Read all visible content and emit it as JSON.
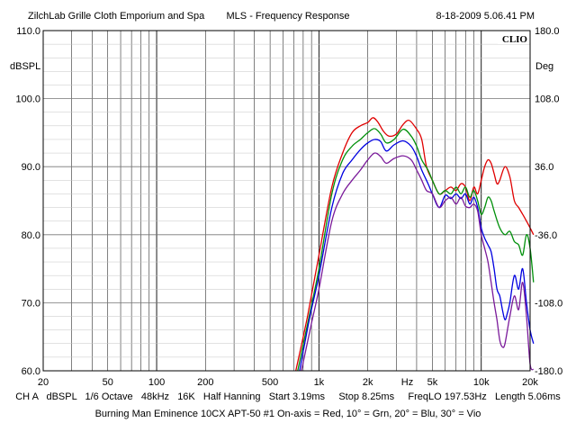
{
  "header": {
    "left": "ZilchLab Grille Cloth Emporium and Spa",
    "center": "MLS - Frequency Response",
    "right": "8-18-2009 5.06.41 PM"
  },
  "brand": "CLIO",
  "footer": {
    "line1": "CH A   dBSPL   1/6 Octave   48kHz   16K   Half Hanning   Start 3.19ms     Stop 8.25ms     FreqLO 197.53Hz   Length 5.06ms",
    "line2": "Burning Man Eminence 10CX APT-50 #1 On-axis = Red, 10° = Grn, 20° = Blu, 30° = Vio"
  },
  "chart_data": {
    "type": "line",
    "title": "MLS - Frequency Response",
    "xlabel": "Hz",
    "ylabel": "dBSPL",
    "y2label": "Deg",
    "xscale": "log",
    "xlim": [
      20,
      20000
    ],
    "ylim": [
      60,
      110
    ],
    "y2lim": [
      -180,
      180
    ],
    "grid": true,
    "x_ticks": [
      {
        "v": 20,
        "label": "20"
      },
      {
        "v": 50,
        "label": "50"
      },
      {
        "v": 100,
        "label": "100"
      },
      {
        "v": 200,
        "label": "200"
      },
      {
        "v": 500,
        "label": "500"
      },
      {
        "v": 1000,
        "label": "1k"
      },
      {
        "v": 2000,
        "label": "2k"
      },
      {
        "v": 3500,
        "label": "Hz"
      },
      {
        "v": 5000,
        "label": "5k"
      },
      {
        "v": 10000,
        "label": "10k"
      },
      {
        "v": 20000,
        "label": "20k"
      }
    ],
    "y_ticks": [
      {
        "v": 110,
        "label": "110.0"
      },
      {
        "v": 100,
        "label": "100.0"
      },
      {
        "v": 90,
        "label": "90.0"
      },
      {
        "v": 80,
        "label": "80.0"
      },
      {
        "v": 70,
        "label": "70.0"
      },
      {
        "v": 60,
        "label": "60.0"
      }
    ],
    "y2_ticks": [
      {
        "v": 180,
        "label": "180.0"
      },
      {
        "v": 108,
        "label": "108.0"
      },
      {
        "v": 36,
        "label": "36.0"
      },
      {
        "v": -36,
        "label": "-36.0"
      },
      {
        "v": -108,
        "label": "-108.0"
      },
      {
        "v": -180,
        "label": "-180.0"
      }
    ],
    "series": [
      {
        "name": "On-axis",
        "color": "#e00000",
        "points": [
          [
            720,
            60
          ],
          [
            850,
            68
          ],
          [
            1000,
            77
          ],
          [
            1200,
            87
          ],
          [
            1400,
            92
          ],
          [
            1600,
            95
          ],
          [
            1800,
            96
          ],
          [
            2000,
            96.5
          ],
          [
            2150,
            97.2
          ],
          [
            2300,
            96.6
          ],
          [
            2500,
            95.2
          ],
          [
            2700,
            94.5
          ],
          [
            3000,
            94.8
          ],
          [
            3300,
            96.2
          ],
          [
            3600,
            96.8
          ],
          [
            4000,
            95.5
          ],
          [
            4300,
            94
          ],
          [
            4600,
            90
          ],
          [
            5000,
            88
          ],
          [
            5500,
            86
          ],
          [
            6000,
            86.5
          ],
          [
            6500,
            87
          ],
          [
            7000,
            86.5
          ],
          [
            7500,
            87.5
          ],
          [
            8000,
            87
          ],
          [
            8500,
            85
          ],
          [
            9000,
            87
          ],
          [
            9500,
            86
          ],
          [
            10000,
            88
          ],
          [
            10500,
            90
          ],
          [
            11000,
            91
          ],
          [
            11500,
            90.5
          ],
          [
            12000,
            89
          ],
          [
            12500,
            87.5
          ],
          [
            13000,
            88
          ],
          [
            14000,
            90
          ],
          [
            15000,
            88.5
          ],
          [
            16000,
            85
          ],
          [
            17000,
            84
          ],
          [
            18000,
            83
          ],
          [
            19000,
            82
          ],
          [
            20000,
            81
          ],
          [
            21000,
            80
          ]
        ]
      },
      {
        "name": "10°",
        "color": "#00900a",
        "points": [
          [
            740,
            60
          ],
          [
            870,
            68
          ],
          [
            1000,
            75
          ],
          [
            1200,
            86
          ],
          [
            1400,
            91
          ],
          [
            1600,
            93
          ],
          [
            1800,
            94
          ],
          [
            2000,
            95
          ],
          [
            2200,
            95.6
          ],
          [
            2400,
            94.8
          ],
          [
            2600,
            93.5
          ],
          [
            2900,
            94
          ],
          [
            3300,
            95.5
          ],
          [
            3700,
            94.5
          ],
          [
            4000,
            93
          ],
          [
            4300,
            91
          ],
          [
            4700,
            89.5
          ],
          [
            5000,
            88
          ],
          [
            5500,
            86
          ],
          [
            6000,
            86.5
          ],
          [
            6500,
            86
          ],
          [
            7000,
            87
          ],
          [
            7500,
            86
          ],
          [
            8000,
            87
          ],
          [
            8500,
            85.5
          ],
          [
            9000,
            86.5
          ],
          [
            9500,
            85
          ],
          [
            10000,
            83
          ],
          [
            10500,
            84
          ],
          [
            11000,
            85.5
          ],
          [
            11500,
            85
          ],
          [
            12000,
            83.5
          ],
          [
            13000,
            81
          ],
          [
            14000,
            80
          ],
          [
            15000,
            80.5
          ],
          [
            16000,
            79
          ],
          [
            17000,
            78.5
          ],
          [
            18000,
            77
          ],
          [
            19000,
            80
          ],
          [
            20000,
            78
          ],
          [
            21000,
            73
          ]
        ]
      },
      {
        "name": "20°",
        "color": "#0000e0",
        "points": [
          [
            760,
            60
          ],
          [
            880,
            68
          ],
          [
            1000,
            74
          ],
          [
            1200,
            84
          ],
          [
            1400,
            89
          ],
          [
            1600,
            91
          ],
          [
            1800,
            92.5
          ],
          [
            2000,
            93.5
          ],
          [
            2200,
            94
          ],
          [
            2400,
            93.7
          ],
          [
            2600,
            92.3
          ],
          [
            2900,
            93.2
          ],
          [
            3300,
            93.8
          ],
          [
            3700,
            93
          ],
          [
            4000,
            91.5
          ],
          [
            4300,
            89.5
          ],
          [
            4700,
            87.5
          ],
          [
            5000,
            86
          ],
          [
            5500,
            84
          ],
          [
            6000,
            85.8
          ],
          [
            6500,
            85.3
          ],
          [
            7000,
            86
          ],
          [
            7500,
            85.3
          ],
          [
            8000,
            86
          ],
          [
            8500,
            84.5
          ],
          [
            9000,
            85.5
          ],
          [
            9500,
            84
          ],
          [
            10000,
            81
          ],
          [
            10500,
            79.5
          ],
          [
            11000,
            78.5
          ],
          [
            11500,
            77.5
          ],
          [
            12000,
            75
          ],
          [
            12500,
            72
          ],
          [
            13000,
            71
          ],
          [
            13500,
            69
          ],
          [
            14000,
            67.5
          ],
          [
            14500,
            68.5
          ],
          [
            15000,
            70
          ],
          [
            16000,
            74
          ],
          [
            17000,
            72
          ],
          [
            18000,
            75
          ],
          [
            19000,
            70
          ],
          [
            20000,
            66
          ],
          [
            21000,
            64
          ]
        ]
      },
      {
        "name": "30°",
        "color": "#7a1a9a",
        "points": [
          [
            780,
            60
          ],
          [
            900,
            67
          ],
          [
            1000,
            72
          ],
          [
            1200,
            82
          ],
          [
            1400,
            86
          ],
          [
            1600,
            88
          ],
          [
            1800,
            89.5
          ],
          [
            2000,
            91
          ],
          [
            2200,
            92
          ],
          [
            2400,
            91.5
          ],
          [
            2600,
            90.5
          ],
          [
            2900,
            91.2
          ],
          [
            3300,
            91.6
          ],
          [
            3700,
            91
          ],
          [
            4000,
            89.5
          ],
          [
            4300,
            88
          ],
          [
            4600,
            86.5
          ],
          [
            5000,
            86
          ],
          [
            5500,
            84
          ],
          [
            6000,
            85
          ],
          [
            6500,
            85.5
          ],
          [
            7000,
            84.5
          ],
          [
            7500,
            85.5
          ],
          [
            8000,
            84.2
          ],
          [
            8500,
            84
          ],
          [
            9000,
            84.5
          ],
          [
            9500,
            83.5
          ],
          [
            10000,
            80
          ],
          [
            10500,
            78
          ],
          [
            11000,
            76
          ],
          [
            11500,
            73
          ],
          [
            12000,
            70
          ],
          [
            12500,
            67.5
          ],
          [
            13000,
            64.5
          ],
          [
            13500,
            63.5
          ],
          [
            14000,
            64
          ],
          [
            15000,
            68
          ],
          [
            16000,
            71
          ],
          [
            17000,
            69
          ],
          [
            18000,
            73
          ],
          [
            19000,
            68
          ],
          [
            20000,
            61
          ],
          [
            21000,
            60.2
          ]
        ]
      }
    ]
  }
}
